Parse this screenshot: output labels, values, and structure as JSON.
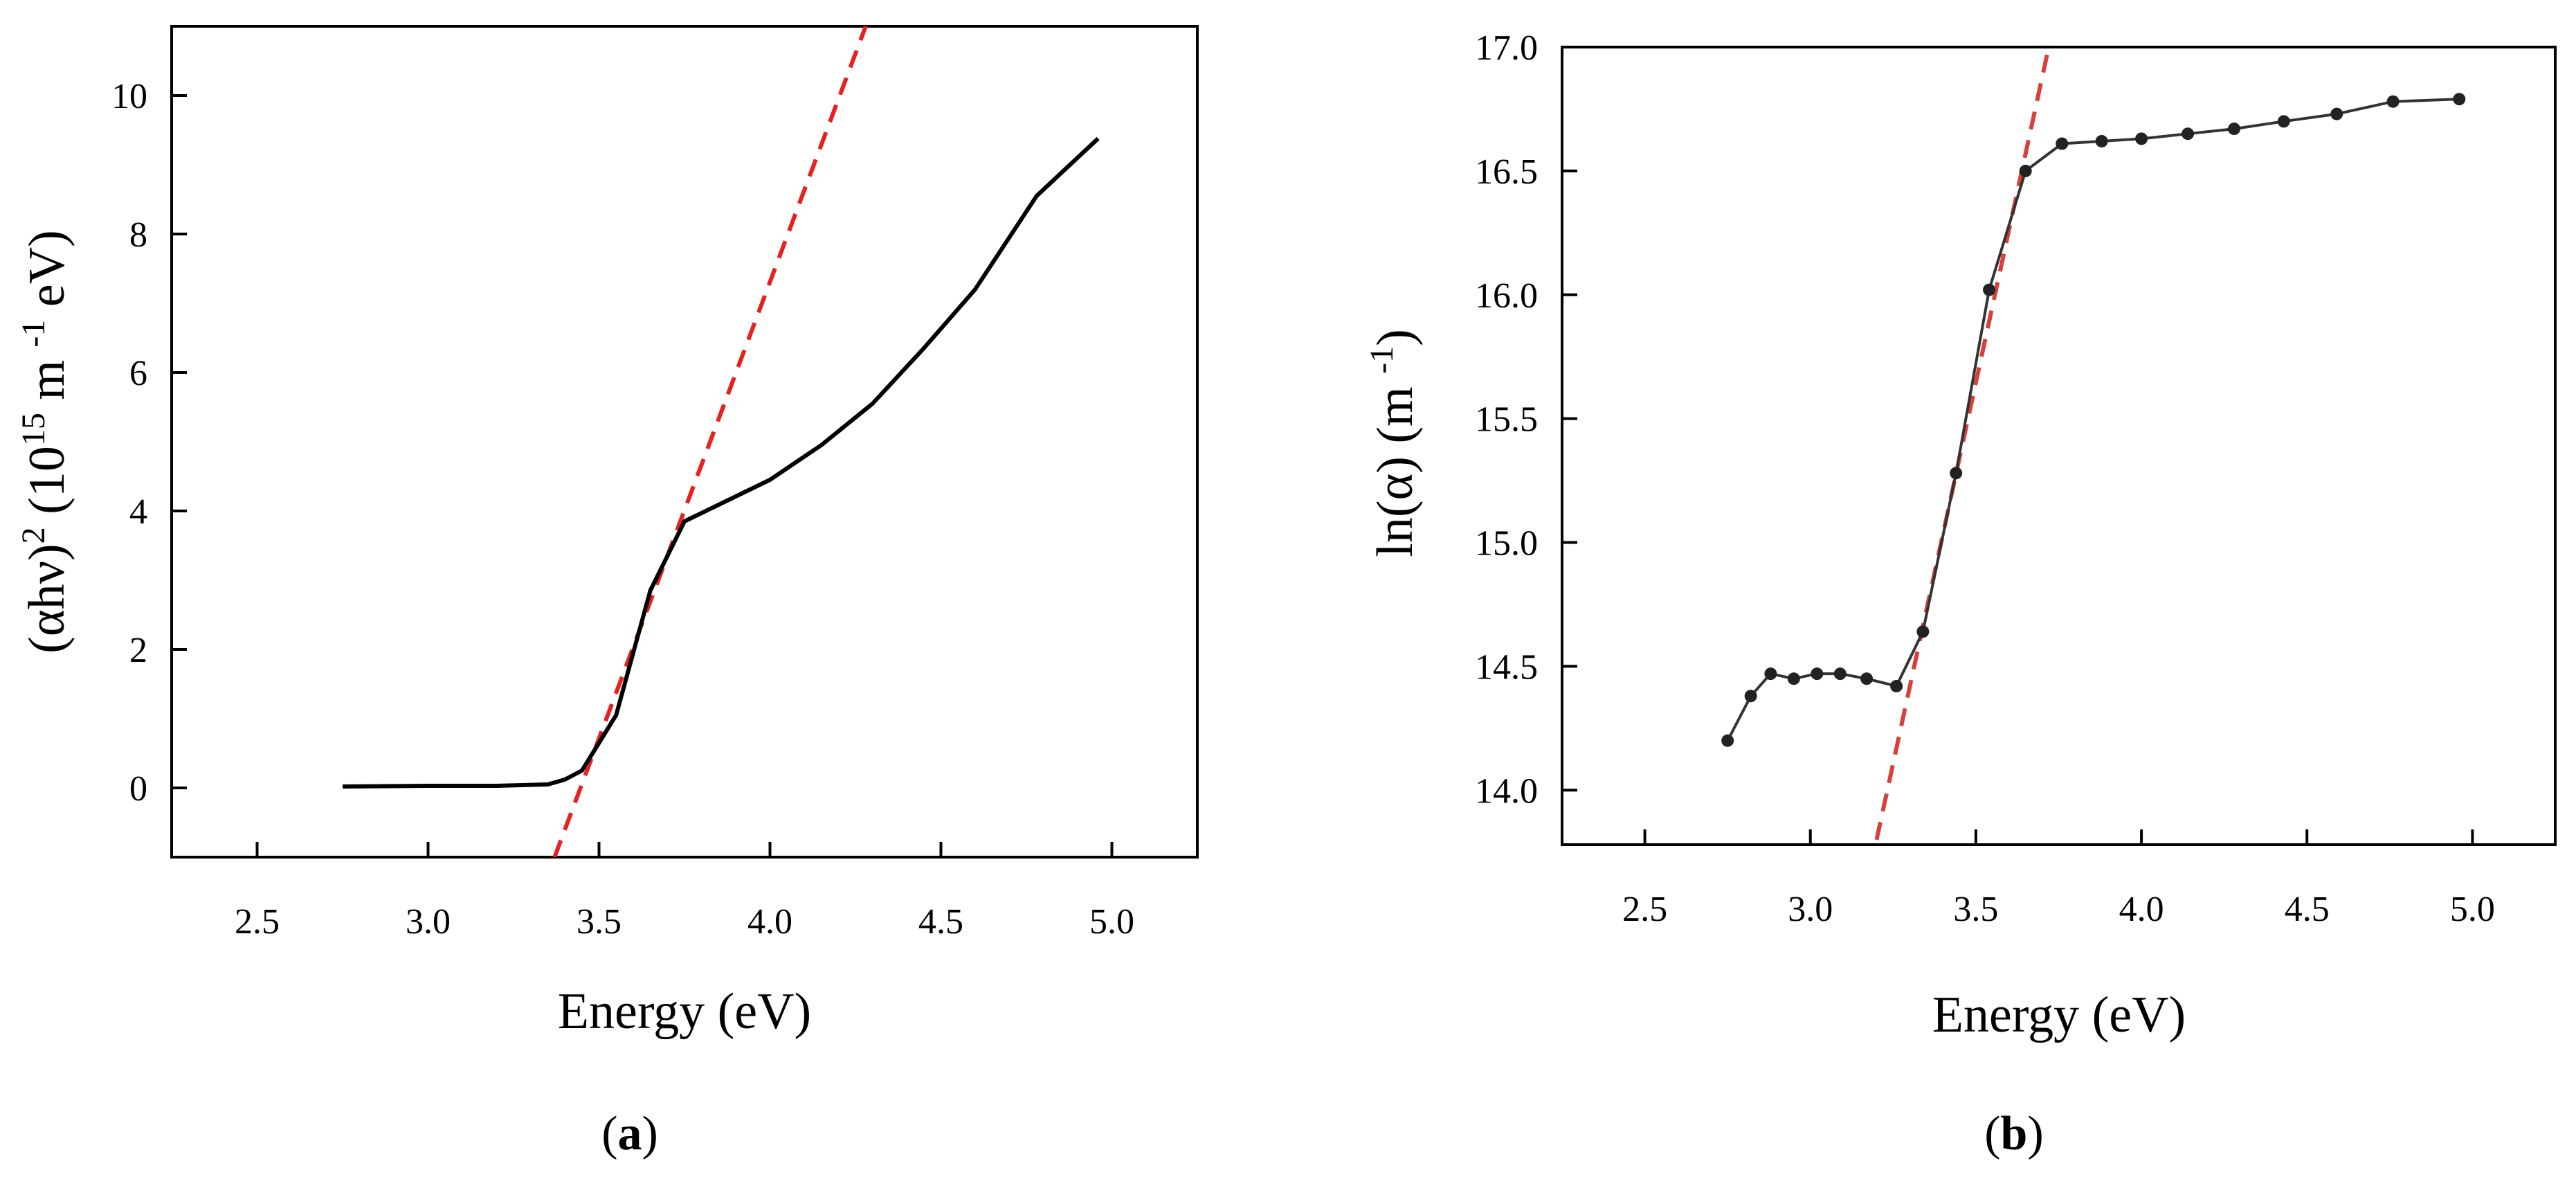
{
  "chart_data": [
    {
      "type": "line",
      "panel": "a",
      "panel_label": "(a)",
      "xlabel": "Energy (eV)",
      "ylabel_prefix": "(αhν)",
      "ylabel_sup1": "2",
      "ylabel_mid": " (10",
      "ylabel_sup2": "15",
      "ylabel_mid2": " m ",
      "ylabel_sup3": "-1",
      "ylabel_suffix": " eV)",
      "xlim": [
        2.25,
        5.25
      ],
      "ylim": [
        -1,
        11
      ],
      "xticks": [
        2.5,
        3.0,
        3.5,
        4.0,
        4.5,
        5.0
      ],
      "xtick_labels": [
        "2.5",
        "3.0",
        "3.5",
        "4.0",
        "4.5",
        "5.0"
      ],
      "yticks": [
        0,
        2,
        4,
        6,
        8,
        10
      ],
      "ytick_labels": [
        "0",
        "2",
        "4",
        "6",
        "8",
        "10"
      ],
      "series": [
        {
          "name": "data",
          "color": "#000000",
          "markers": false,
          "x": [
            2.75,
            3.0,
            3.2,
            3.35,
            3.4,
            3.45,
            3.55,
            3.65,
            3.75,
            4.0,
            4.15,
            4.3,
            4.45,
            4.6,
            4.78,
            4.96
          ],
          "y": [
            0.02,
            0.03,
            0.03,
            0.05,
            0.12,
            0.25,
            1.05,
            2.85,
            3.85,
            4.45,
            4.95,
            5.55,
            6.35,
            7.2,
            8.55,
            9.38
          ]
        }
      ],
      "fit_line": {
        "color": "#e8201f",
        "x": [
          3.37,
          4.28
        ],
        "y": [
          -1,
          11
        ]
      }
    },
    {
      "type": "line",
      "panel": "b",
      "panel_label": "(b)",
      "xlabel": "Energy (eV)",
      "ylabel_prefix": "ln(α) (m ",
      "ylabel_sup": "-1",
      "ylabel_suffix": ")",
      "xlim": [
        2.25,
        5.25
      ],
      "ylim": [
        13.78,
        17.0
      ],
      "xticks": [
        2.5,
        3.0,
        3.5,
        4.0,
        4.5,
        5.0
      ],
      "xtick_labels": [
        "2.5",
        "3.0",
        "3.5",
        "4.0",
        "4.5",
        "5.0"
      ],
      "yticks": [
        14.0,
        14.5,
        15.0,
        15.5,
        16.0,
        16.5,
        17.0
      ],
      "ytick_labels": [
        "14.0",
        "14.5",
        "15.0",
        "15.5",
        "16.0",
        "16.5",
        "17.0"
      ],
      "series": [
        {
          "name": "data",
          "color": "#222222",
          "markers": true,
          "x": [
            2.75,
            2.82,
            2.88,
            2.95,
            3.02,
            3.09,
            3.17,
            3.26,
            3.34,
            3.44,
            3.54,
            3.65,
            3.76,
            3.88,
            4.0,
            4.14,
            4.28,
            4.43,
            4.59,
            4.76,
            4.96
          ],
          "y": [
            14.2,
            14.38,
            14.47,
            14.45,
            14.47,
            14.47,
            14.45,
            14.42,
            14.64,
            15.28,
            16.02,
            16.5,
            16.61,
            16.62,
            16.63,
            16.65,
            16.67,
            16.7,
            16.73,
            16.78,
            16.79
          ]
        }
      ],
      "fit_line": {
        "color": "#d8403a",
        "x": [
          3.2,
          3.72
        ],
        "y": [
          13.8,
          17.0
        ]
      }
    }
  ]
}
